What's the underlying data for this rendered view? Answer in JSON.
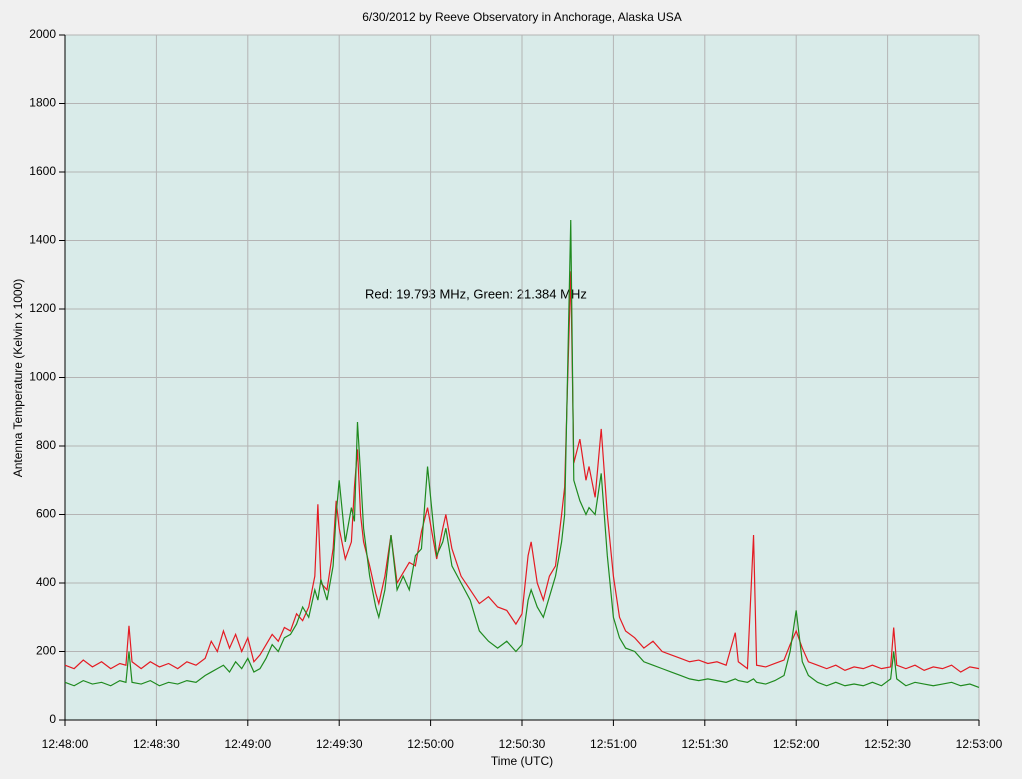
{
  "chart_data": {
    "type": "line",
    "title": "6/30/2012  by  Reeve Observatory  in  Anchorage, Alaska  USA",
    "xlabel": "Time (UTC)",
    "ylabel": "Antenna Temperature (Kelvin x 1000)",
    "annotation": "Red: 19.793 MHz, Green: 21.384 MHz",
    "x": [
      0,
      3,
      6,
      9,
      12,
      15,
      18,
      20,
      21,
      22,
      25,
      28,
      31,
      34,
      37,
      40,
      43,
      46,
      48,
      50,
      52,
      54,
      56,
      58,
      60,
      62,
      64,
      66,
      68,
      70,
      72,
      74,
      76,
      78,
      80,
      82,
      83,
      84,
      86,
      88,
      89,
      90,
      92,
      94,
      95,
      96,
      97,
      98,
      100,
      102,
      103,
      105,
      107,
      109,
      111,
      113,
      115,
      117,
      119,
      121,
      122,
      124,
      125,
      127,
      130,
      133,
      136,
      139,
      142,
      145,
      148,
      150,
      152,
      153,
      155,
      157,
      159,
      161,
      163,
      164,
      166,
      167,
      169,
      171,
      172,
      174,
      176,
      178,
      180,
      182,
      184,
      187,
      190,
      193,
      196,
      199,
      202,
      205,
      208,
      211,
      214,
      217,
      220,
      221,
      224,
      226,
      227,
      230,
      233,
      236,
      238,
      240,
      242,
      244,
      247,
      250,
      253,
      256,
      259,
      262,
      265,
      268,
      271,
      272,
      273,
      276,
      279,
      282,
      285,
      288,
      291,
      294,
      297,
      300
    ],
    "series": [
      {
        "color": "#e41b23",
        "values": [
          160,
          150,
          175,
          155,
          170,
          150,
          165,
          160,
          275,
          170,
          150,
          170,
          155,
          165,
          150,
          170,
          160,
          180,
          230,
          200,
          260,
          210,
          250,
          200,
          240,
          170,
          190,
          220,
          250,
          230,
          270,
          260,
          310,
          290,
          330,
          420,
          630,
          400,
          380,
          500,
          640,
          560,
          470,
          520,
          680,
          790,
          600,
          520,
          450,
          370,
          340,
          420,
          540,
          400,
          430,
          460,
          450,
          550,
          620,
          520,
          470,
          560,
          600,
          500,
          420,
          380,
          340,
          360,
          330,
          320,
          280,
          310,
          480,
          520,
          400,
          350,
          420,
          450,
          600,
          680,
          1310,
          750,
          820,
          700,
          740,
          650,
          850,
          600,
          420,
          300,
          260,
          240,
          210,
          230,
          200,
          190,
          180,
          170,
          175,
          165,
          170,
          160,
          255,
          170,
          150,
          540,
          160,
          155,
          165,
          175,
          220,
          260,
          210,
          170,
          160,
          150,
          160,
          145,
          155,
          150,
          160,
          150,
          155,
          270,
          160,
          150,
          160,
          145,
          155,
          150,
          160,
          140,
          155,
          150
        ]
      },
      {
        "color": "#1f8a1f",
        "values": [
          110,
          100,
          115,
          105,
          110,
          100,
          115,
          110,
          200,
          110,
          105,
          115,
          100,
          110,
          105,
          115,
          110,
          130,
          140,
          150,
          160,
          140,
          170,
          150,
          180,
          140,
          150,
          180,
          220,
          200,
          240,
          250,
          280,
          330,
          300,
          380,
          350,
          410,
          350,
          450,
          600,
          700,
          520,
          620,
          580,
          870,
          720,
          560,
          420,
          330,
          300,
          380,
          540,
          380,
          420,
          380,
          480,
          500,
          740,
          560,
          480,
          520,
          560,
          450,
          400,
          350,
          260,
          230,
          210,
          230,
          200,
          220,
          350,
          380,
          330,
          300,
          360,
          420,
          520,
          600,
          1460,
          700,
          640,
          600,
          620,
          600,
          720,
          480,
          300,
          240,
          210,
          200,
          170,
          160,
          150,
          140,
          130,
          120,
          115,
          120,
          115,
          110,
          120,
          115,
          110,
          120,
          110,
          105,
          115,
          130,
          200,
          320,
          170,
          130,
          110,
          100,
          110,
          100,
          105,
          100,
          110,
          100,
          120,
          200,
          120,
          100,
          110,
          105,
          100,
          105,
          110,
          100,
          105,
          95
        ]
      }
    ],
    "xlim": [
      0,
      300
    ],
    "xticks": [
      {
        "value": 0,
        "label": "12:48:00"
      },
      {
        "value": 30,
        "label": "12:48:30"
      },
      {
        "value": 60,
        "label": "12:49:00"
      },
      {
        "value": 90,
        "label": "12:49:30"
      },
      {
        "value": 120,
        "label": "12:50:00"
      },
      {
        "value": 150,
        "label": "12:50:30"
      },
      {
        "value": 180,
        "label": "12:51:00"
      },
      {
        "value": 210,
        "label": "12:51:30"
      },
      {
        "value": 240,
        "label": "12:52:00"
      },
      {
        "value": 270,
        "label": "12:52:30"
      },
      {
        "value": 300,
        "label": "12:53:00"
      }
    ],
    "ylim": [
      0,
      2000
    ],
    "yticks": [
      0,
      200,
      400,
      600,
      800,
      1000,
      1200,
      1400,
      1600,
      1800,
      2000
    ],
    "grid": true
  }
}
